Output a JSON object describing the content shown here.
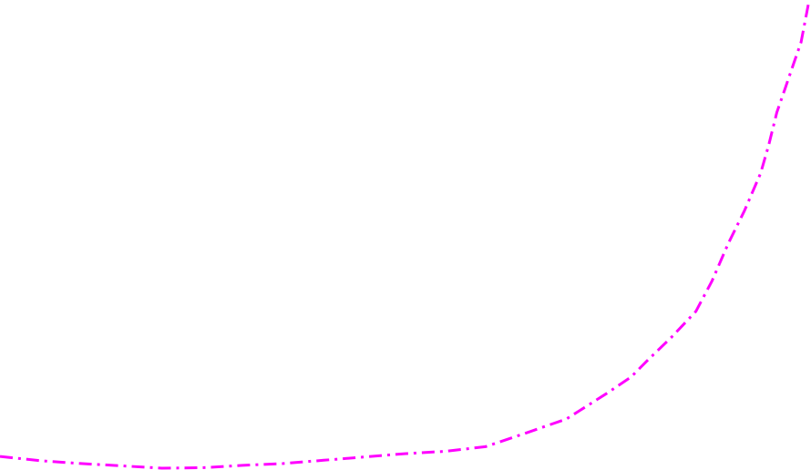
{
  "chart_data": {
    "type": "line",
    "grid": false,
    "legend": "none",
    "xlim": [
      0,
      100
    ],
    "ylim": [
      0,
      100
    ],
    "series": [
      {
        "color": "#ff00ff",
        "line_style": "dash-dot",
        "x": [
          0,
          5,
          10,
          15,
          20,
          25,
          30,
          35,
          40,
          45,
          50,
          55,
          60,
          65,
          70,
          75,
          78,
          80,
          83,
          86,
          88,
          90,
          92,
          94,
          95,
          96,
          97,
          98,
          99,
          100
        ],
        "y": [
          2.5,
          1.6,
          1.0,
          0.5,
          0.0,
          0.1,
          0.6,
          1.0,
          1.7,
          2.4,
          3.1,
          3.6,
          4.6,
          7.5,
          10.5,
          16.0,
          19.5,
          23.0,
          28.0,
          33.5,
          40.0,
          48.0,
          55.0,
          63.0,
          69.0,
          76.0,
          81.0,
          86.0,
          91.0,
          100.0
        ]
      }
    ]
  }
}
